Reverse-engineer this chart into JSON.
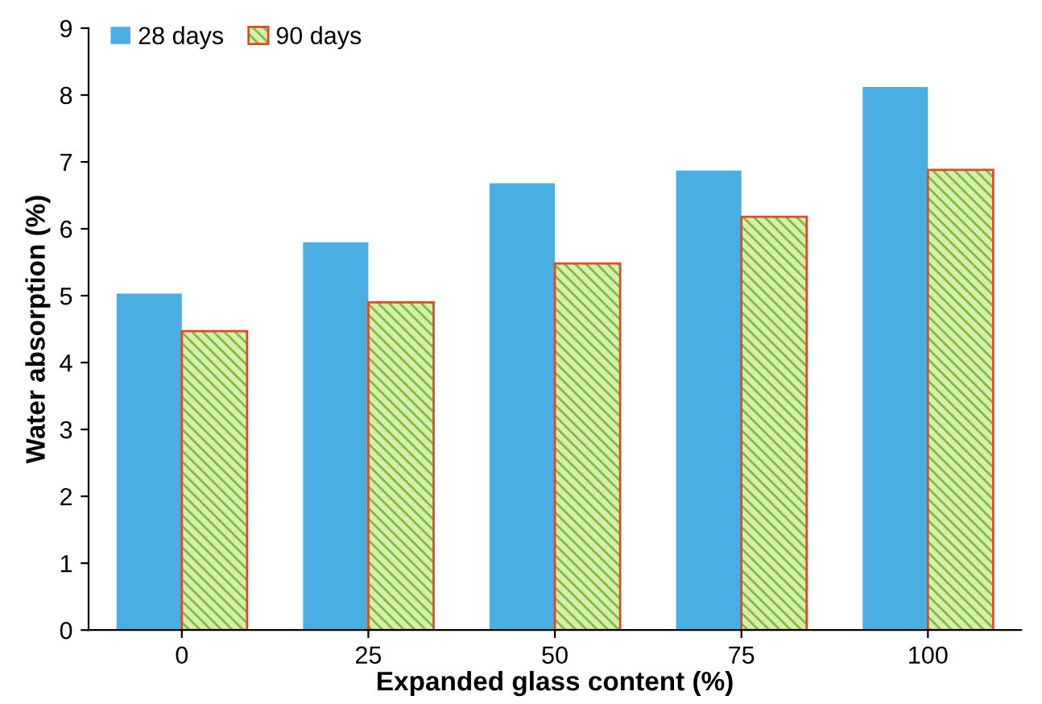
{
  "chart_data": {
    "type": "bar",
    "xlabel": "Expanded glass content (%)",
    "ylabel": "Water absorption (%)",
    "categories": [
      "0",
      "25",
      "50",
      "75",
      "100"
    ],
    "series": [
      {
        "name": "28 days",
        "color": "#4aaee3",
        "values": [
          5.03,
          5.8,
          6.68,
          6.87,
          8.12
        ]
      },
      {
        "name": "90 days",
        "color": "#e04a2a",
        "values": [
          4.47,
          4.9,
          5.48,
          6.18,
          6.88
        ]
      }
    ],
    "ylim": [
      0,
      9
    ],
    "yticks": [
      0,
      1,
      2,
      3,
      4,
      5,
      6,
      7,
      8,
      9
    ],
    "grid": false,
    "legend": "top left"
  }
}
